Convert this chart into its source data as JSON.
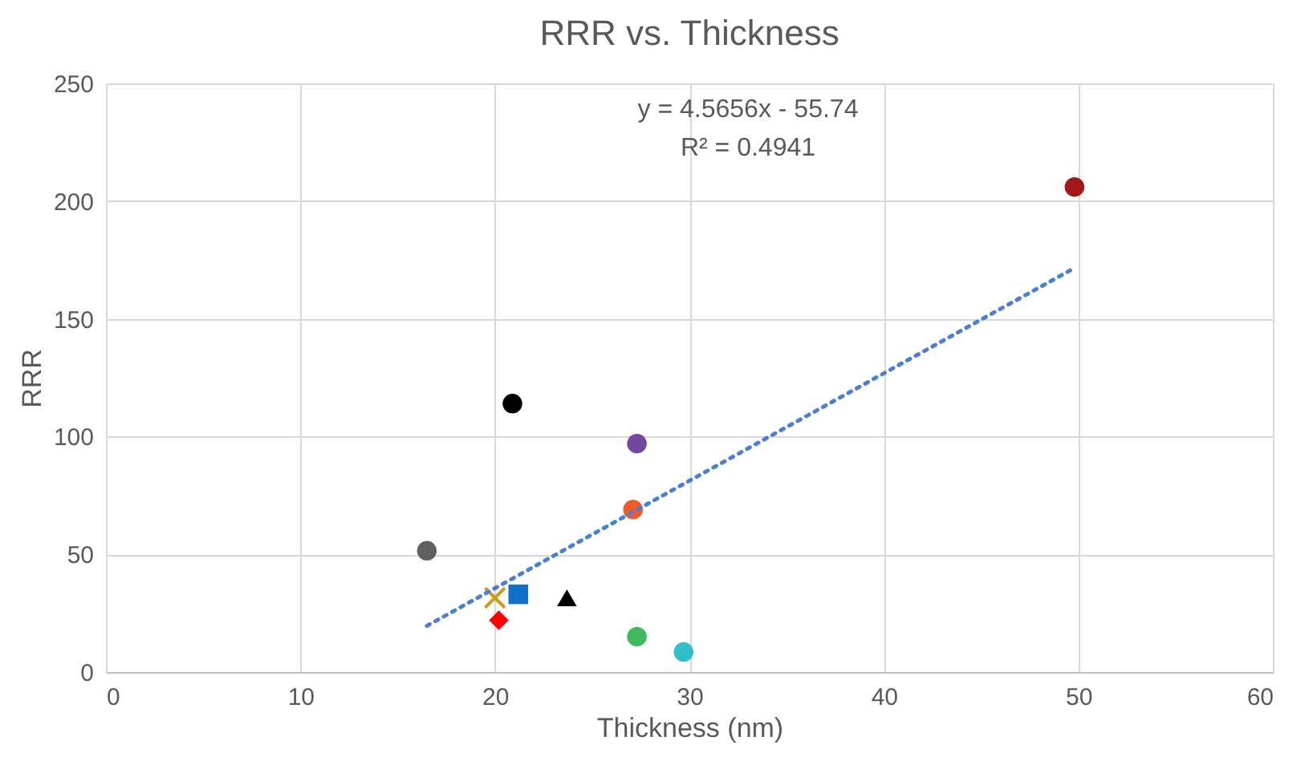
{
  "chart_data": {
    "type": "scatter",
    "title": "RRR vs. Thickness",
    "xlabel": "Thickness (nm)",
    "ylabel": "RRR",
    "xlim": [
      0,
      60
    ],
    "xticks": [
      0,
      10,
      20,
      30,
      40,
      50,
      60
    ],
    "ylim": [
      0,
      250
    ],
    "yticks": [
      0,
      50,
      100,
      150,
      200,
      250
    ],
    "grid": true,
    "annotations": [
      "y = 4.5656x - 55.74",
      "R² = 0.4941"
    ],
    "series": [
      {
        "color": "#606060",
        "marker": "circle",
        "x": [
          16.5
        ],
        "values": [
          51.5
        ]
      },
      {
        "color": "#000000",
        "marker": "circle",
        "x": [
          20.9
        ],
        "values": [
          114
        ]
      },
      {
        "color": "#7048a0",
        "marker": "circle",
        "x": [
          27.3
        ],
        "values": [
          97
        ]
      },
      {
        "color": "#f05a28",
        "marker": "circle",
        "x": [
          27.1
        ],
        "values": [
          69
        ]
      },
      {
        "color": "#c8a020",
        "marker": "cross",
        "x": [
          20.0
        ],
        "values": [
          31.5
        ]
      },
      {
        "color": "#1070c8",
        "marker": "square",
        "x": [
          21.2
        ],
        "values": [
          33
        ]
      },
      {
        "color": "#ff0000",
        "marker": "diamond",
        "x": [
          20.2
        ],
        "values": [
          22
        ]
      },
      {
        "color": "#000000",
        "marker": "triangle",
        "x": [
          23.7
        ],
        "values": [
          31.5
        ]
      },
      {
        "color": "#40b860",
        "marker": "circle",
        "x": [
          27.3
        ],
        "values": [
          15
        ]
      },
      {
        "color": "#30c0c8",
        "marker": "circle",
        "x": [
          29.7
        ],
        "values": [
          8.5
        ]
      },
      {
        "color": "#a01818",
        "marker": "circle",
        "x": [
          49.8
        ],
        "values": [
          206
        ]
      },
      {
        "type": "line",
        "color": "#4a7fd4",
        "marker": "none",
        "line_style": "dotted",
        "x": [
          16.5,
          49.8
        ],
        "values": [
          19.6,
          171.6
        ]
      }
    ]
  }
}
